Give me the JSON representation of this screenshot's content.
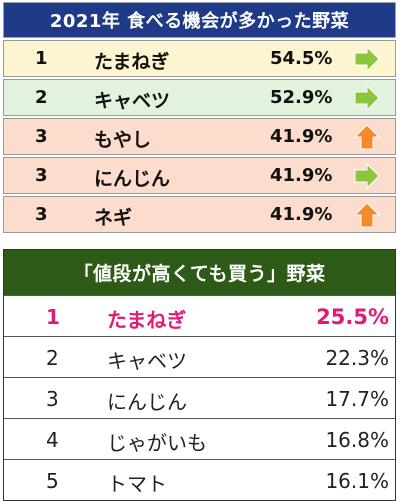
{
  "table1": {
    "title": "2021年 食べる機会が多かった野菜",
    "colors": {
      "header": "#1f3a87",
      "row_yellow": "#fdf5cf",
      "row_green": "#e3f2dd",
      "row_peach": "#fbdccd",
      "arrow_right": "#8cc63f",
      "arrow_up": "#f58a2a"
    },
    "rows": [
      {
        "rank": "1",
        "name": "たまねぎ",
        "pct": "54.5%",
        "icon": "arrow-right-icon",
        "bg": "#fdf5cf"
      },
      {
        "rank": "2",
        "name": "キャベツ",
        "pct": "52.9%",
        "icon": "arrow-right-icon",
        "bg": "#e3f2dd"
      },
      {
        "rank": "3",
        "name": "もやし",
        "pct": "41.9%",
        "icon": "arrow-up-icon",
        "bg": "#fbdccd"
      },
      {
        "rank": "3",
        "name": "にんじん",
        "pct": "41.9%",
        "icon": "arrow-right-icon",
        "bg": "#fbdccd"
      },
      {
        "rank": "3",
        "name": "ネギ",
        "pct": "41.9%",
        "icon": "arrow-up-icon",
        "bg": "#fbdccd"
      }
    ]
  },
  "table2": {
    "title": "「値段が高くても買う」野菜",
    "colors": {
      "header": "#2d5a16",
      "highlight": "#e11a78"
    },
    "rows": [
      {
        "rank": "1",
        "name": "たまねぎ",
        "pct": "25.5%",
        "highlight": true
      },
      {
        "rank": "2",
        "name": "キャベツ",
        "pct": "22.3%",
        "highlight": false
      },
      {
        "rank": "3",
        "name": "にんじん",
        "pct": "17.7%",
        "highlight": false
      },
      {
        "rank": "4",
        "name": "じゃがいも",
        "pct": "16.8%",
        "highlight": false
      },
      {
        "rank": "5",
        "name": "トマト",
        "pct": "16.1%",
        "highlight": false
      }
    ]
  }
}
